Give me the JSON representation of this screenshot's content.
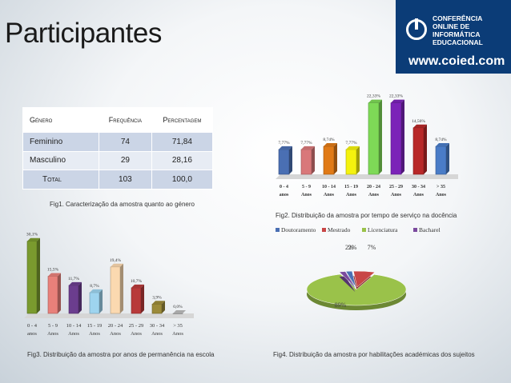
{
  "title": "Participantes",
  "logo": {
    "lines": [
      "CONFERÊNCIA",
      "ONLINE DE",
      "INFORMÁTICA",
      "EDUCACIONAL"
    ],
    "url": "www.coied.com",
    "icon": "power-icon"
  },
  "table": {
    "headers": [
      "Género",
      "Frequência",
      "Percentagem"
    ],
    "rows": [
      [
        "Feminino",
        "74",
        "71,84"
      ],
      [
        "Masculino",
        "29",
        "28,16"
      ],
      [
        "Total",
        "103",
        "100,0"
      ]
    ]
  },
  "captions": {
    "fig1": "Fig1. Caracterização da amostra quanto ao género",
    "fig2": "Fig2. Distribuição da amostra por tempo de serviço na docência",
    "fig3": "Fig3. Distribuição da amostra por anos de permanência na escola",
    "fig4": "Fig4. Distribuição da amostra por habilitações académicas dos sujeitos"
  },
  "chart_data": [
    {
      "type": "bar",
      "categories": [
        "0 - 4 anos",
        "5 - 9 Anos",
        "10 - 14 Anos",
        "15 - 19 Anos",
        "20 - 24 Anos",
        "25 - 29 Anos",
        "30 - 34 Anos",
        "> 35 Anos"
      ],
      "values": [
        7.77,
        7.77,
        8.74,
        7.77,
        22.33,
        22.33,
        14.56,
        8.74
      ],
      "labels": [
        "7,77%",
        "7,77%",
        "8,74%",
        "7,77%",
        "22,33%",
        "22,33%",
        "14,56%",
        "8,74%"
      ],
      "colors": [
        "#4a6fb3",
        "#d9787a",
        "#e07a17",
        "#f4f20e",
        "#7ed957",
        "#7b23b8",
        "#b82828",
        "#4a7cc7"
      ],
      "ylim": [
        0,
        24
      ]
    },
    {
      "type": "bar",
      "categories": [
        "0 - 4 anos",
        "5 - 9 Anos",
        "10 - 14 Anos",
        "15 - 19 Anos",
        "20 - 24 Anos",
        "25 - 29 Anos",
        "30 - 34 Anos",
        "> 35 Anos"
      ],
      "values": [
        30.1,
        15.5,
        11.7,
        8.7,
        19.4,
        10.7,
        3.9,
        0.0
      ],
      "labels": [
        "30,1%",
        "15,5%",
        "11,7%",
        "8,7%",
        "19,4%",
        "10,7%",
        "3,9%",
        "0,0%"
      ],
      "colors": [
        "#7a9a2e",
        "#e8807a",
        "#6b3d8e",
        "#9ed4ef",
        "#fbd9b0",
        "#b83a3a",
        "#9b8a3a",
        "#bbbbbb"
      ],
      "ylim": [
        0,
        32
      ]
    },
    {
      "type": "pie",
      "legend": [
        "Doutoramento",
        "Mestrado",
        "Licenciatura",
        "Bacharel"
      ],
      "legend_position": "top",
      "values": [
        2,
        7,
        89,
        2
      ],
      "labels": [
        "2%",
        "7%",
        "89%",
        "2%"
      ],
      "colors": [
        "#4a6fb3",
        "#c84646",
        "#9ac24a",
        "#7b4a9e"
      ]
    }
  ]
}
